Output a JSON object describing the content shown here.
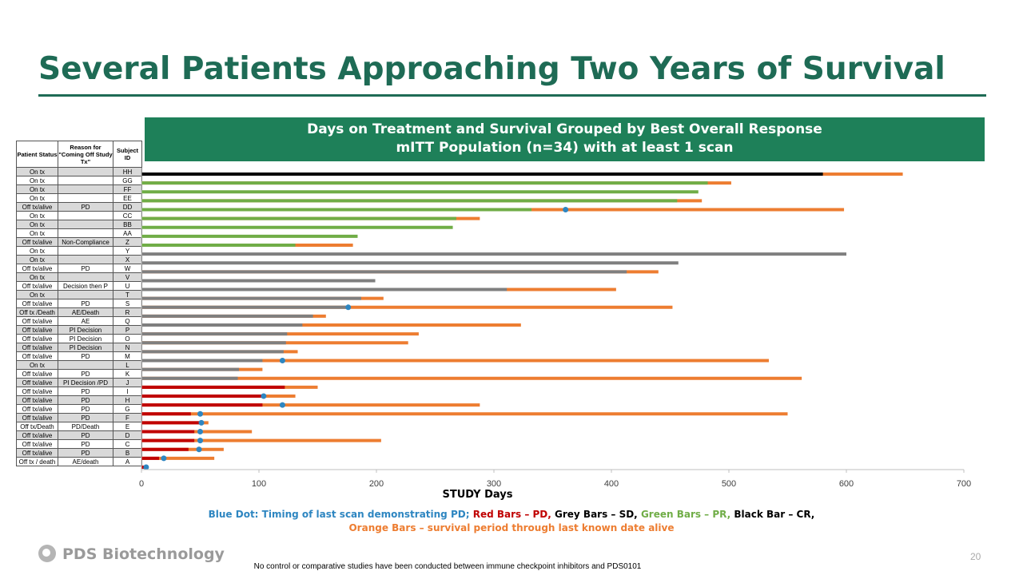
{
  "slide": {
    "title": "Several Patients Approaching Two Years of Survival",
    "banner_line1": "Days on Treatment and Survival Grouped by Best Overall Response",
    "banner_line2": "mITT Population (n=34)  with at least 1 scan",
    "logo_text": "PDS Biotechnology",
    "page_number": "20",
    "disclaimer": "No control or comparative studies have been conducted between immune checkpoint inhibitors and PDS0101"
  },
  "table": {
    "headers": [
      "Patient Status",
      "Reason for \"Coming Off Study Tx\"",
      "Subject ID"
    ],
    "rows": [
      [
        "On tx",
        "",
        "HH"
      ],
      [
        "On tx",
        "",
        "GG"
      ],
      [
        "On tx",
        "",
        "FF"
      ],
      [
        "On tx",
        "",
        "EE"
      ],
      [
        "Off tx/alive",
        "PD",
        "DD"
      ],
      [
        "On tx",
        "",
        "CC"
      ],
      [
        "On tx",
        "",
        "BB"
      ],
      [
        "On tx",
        "",
        "AA"
      ],
      [
        "Off tx/alive",
        "Non-Compliance",
        "Z"
      ],
      [
        "On tx",
        "",
        "Y"
      ],
      [
        "On tx",
        "",
        "X"
      ],
      [
        "Off tx/alive",
        "PD",
        "W"
      ],
      [
        "On tx",
        "",
        "V"
      ],
      [
        "Off tx/alive",
        "Decision then P",
        "U"
      ],
      [
        "On tx",
        "",
        "T"
      ],
      [
        "Off tx/alive",
        "PD",
        "S"
      ],
      [
        "Off tx /Death",
        "AE/Death",
        "R"
      ],
      [
        "Off tx/alive",
        "AE",
        "Q"
      ],
      [
        "Off tx/alive",
        "PI Decision",
        "P"
      ],
      [
        "Off tx/alive",
        "PI Decision",
        "O"
      ],
      [
        "Off tx/alive",
        "PI Decision",
        "N"
      ],
      [
        "Off tx/alive",
        "PD",
        "M"
      ],
      [
        "On tx",
        "",
        "L"
      ],
      [
        "Off tx/alive",
        "PD",
        "K"
      ],
      [
        "Off tx/alive",
        "PI Decision /PD",
        "J"
      ],
      [
        "Off tx/alive",
        "PD",
        "I"
      ],
      [
        "Off tx/alive",
        "PD",
        "H"
      ],
      [
        "Off tx/alive",
        "PD",
        "G"
      ],
      [
        "Off tx/alive",
        "PD",
        "F"
      ],
      [
        "Off tx/Death",
        "PD/Death",
        "E"
      ],
      [
        "Off tx/alive",
        "PD",
        "D"
      ],
      [
        "Off tx/alive",
        "PD",
        "C"
      ],
      [
        "Off tx/alive",
        "PD",
        "B"
      ],
      [
        "Off tx / death",
        "AE/death",
        "A"
      ]
    ]
  },
  "chart_data": {
    "type": "bar",
    "orientation": "horizontal",
    "xlabel": "STUDY Days",
    "xlim": [
      0,
      700
    ],
    "xticks": [
      0,
      100,
      200,
      300,
      400,
      500,
      600,
      700
    ],
    "response_colors": {
      "CR": "#000000",
      "PR": "#70ad47",
      "SD": "#7f7f7f",
      "PD": "#c00000",
      "survival": "#ed7d31",
      "scan": "#2e86c1"
    },
    "subjects": [
      {
        "id": "HH",
        "response": "CR",
        "treatment_days": 580,
        "survival_days": 648,
        "last_pd_scan": null
      },
      {
        "id": "GG",
        "response": "PR",
        "treatment_days": 482,
        "survival_days": 502,
        "last_pd_scan": null
      },
      {
        "id": "FF",
        "response": "PR",
        "treatment_days": 474,
        "survival_days": 474,
        "last_pd_scan": null
      },
      {
        "id": "EE",
        "response": "PR",
        "treatment_days": 456,
        "survival_days": 477,
        "last_pd_scan": null
      },
      {
        "id": "DD",
        "response": "PR",
        "treatment_days": 332,
        "survival_days": 598,
        "last_pd_scan": 361
      },
      {
        "id": "CC",
        "response": "PR",
        "treatment_days": 268,
        "survival_days": 288,
        "last_pd_scan": null
      },
      {
        "id": "BB",
        "response": "PR",
        "treatment_days": 265,
        "survival_days": 265,
        "last_pd_scan": null
      },
      {
        "id": "AA",
        "response": "PR",
        "treatment_days": 184,
        "survival_days": 184,
        "last_pd_scan": null
      },
      {
        "id": "Z",
        "response": "PR",
        "treatment_days": 131,
        "survival_days": 180,
        "last_pd_scan": null
      },
      {
        "id": "Y",
        "response": "SD",
        "treatment_days": 600,
        "survival_days": 600,
        "last_pd_scan": null
      },
      {
        "id": "X",
        "response": "SD",
        "treatment_days": 457,
        "survival_days": 457,
        "last_pd_scan": null
      },
      {
        "id": "W",
        "response": "SD",
        "treatment_days": 413,
        "survival_days": 440,
        "last_pd_scan": null
      },
      {
        "id": "V",
        "response": "SD",
        "treatment_days": 199,
        "survival_days": 199,
        "last_pd_scan": null
      },
      {
        "id": "U",
        "response": "SD",
        "treatment_days": 311,
        "survival_days": 404,
        "last_pd_scan": null
      },
      {
        "id": "T",
        "response": "SD",
        "treatment_days": 187,
        "survival_days": 206,
        "last_pd_scan": null
      },
      {
        "id": "S",
        "response": "SD",
        "treatment_days": 176,
        "survival_days": 452,
        "last_pd_scan": 176
      },
      {
        "id": "R",
        "response": "SD",
        "treatment_days": 146,
        "survival_days": 157,
        "last_pd_scan": null
      },
      {
        "id": "Q",
        "response": "SD",
        "treatment_days": 137,
        "survival_days": 323,
        "last_pd_scan": null
      },
      {
        "id": "P",
        "response": "SD",
        "treatment_days": 124,
        "survival_days": 236,
        "last_pd_scan": null
      },
      {
        "id": "O",
        "response": "SD",
        "treatment_days": 123,
        "survival_days": 227,
        "last_pd_scan": null
      },
      {
        "id": "N",
        "response": "SD",
        "treatment_days": 121,
        "survival_days": 133,
        "last_pd_scan": null
      },
      {
        "id": "M",
        "response": "SD",
        "treatment_days": 103,
        "survival_days": 534,
        "last_pd_scan": 120
      },
      {
        "id": "L",
        "response": "SD",
        "treatment_days": 83,
        "survival_days": 103,
        "last_pd_scan": null
      },
      {
        "id": "K",
        "response": "SD",
        "treatment_days": 82,
        "survival_days": 562,
        "last_pd_scan": null
      },
      {
        "id": "J",
        "response": "PD",
        "treatment_days": 122,
        "survival_days": 150,
        "last_pd_scan": null
      },
      {
        "id": "I",
        "response": "PD",
        "treatment_days": 103,
        "survival_days": 131,
        "last_pd_scan": 104
      },
      {
        "id": "H",
        "response": "PD",
        "treatment_days": 103,
        "survival_days": 288,
        "last_pd_scan": 120
      },
      {
        "id": "G",
        "response": "PD",
        "treatment_days": 42,
        "survival_days": 550,
        "last_pd_scan": 50
      },
      {
        "id": "F",
        "response": "PD",
        "treatment_days": 51,
        "survival_days": 57,
        "last_pd_scan": 51
      },
      {
        "id": "E",
        "response": "PD",
        "treatment_days": 45,
        "survival_days": 94,
        "last_pd_scan": 50
      },
      {
        "id": "D",
        "response": "PD",
        "treatment_days": 45,
        "survival_days": 204,
        "last_pd_scan": 50
      },
      {
        "id": "C",
        "response": "PD",
        "treatment_days": 40,
        "survival_days": 70,
        "last_pd_scan": 49
      },
      {
        "id": "B",
        "response": "PD",
        "treatment_days": 15,
        "survival_days": 62,
        "last_pd_scan": 19
      },
      {
        "id": "A",
        "response": "PD",
        "treatment_days": 2,
        "survival_days": 4,
        "last_pd_scan": 4
      }
    ]
  },
  "legend": {
    "blue": "Blue Dot: Timing of last scan demonstrating PD;",
    "red": "Red Bars – PD,",
    "grey": "Grey Bars – SD,",
    "green": "Green Bars – PR,",
    "black": "Black Bar – CR,",
    "orange": "Orange Bars – survival period through last known date alive"
  }
}
